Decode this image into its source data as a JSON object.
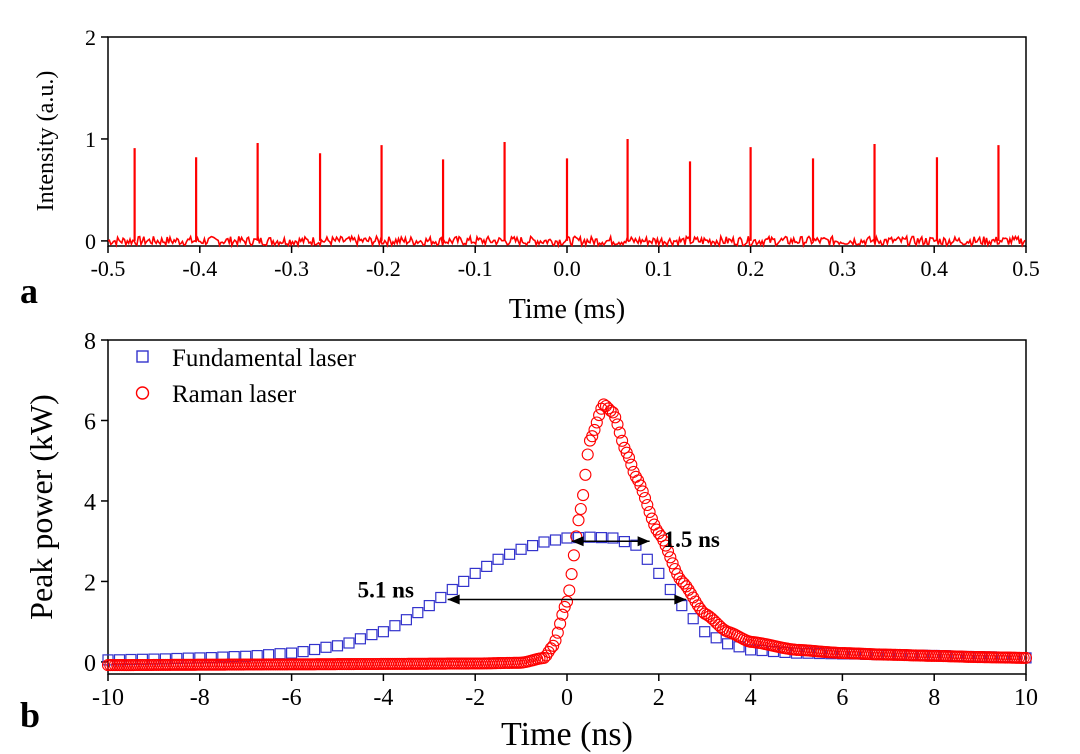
{
  "chart_data": [
    {
      "panel_label": "a",
      "type": "line",
      "xlabel": "Time (ms)",
      "ylabel": "Intensity (a.u.)",
      "xlim": [
        -0.5,
        0.5
      ],
      "ylim": [
        -0.05,
        2
      ],
      "xticks": [
        -0.5,
        -0.4,
        -0.3,
        -0.2,
        -0.1,
        0.0,
        0.1,
        0.2,
        0.3,
        0.4,
        0.5
      ],
      "xtick_labels": [
        "-0.5",
        "-0.4",
        "-0.3",
        "-0.2",
        "-0.1",
        "0.0",
        "0.1",
        "0.2",
        "0.3",
        "0.4",
        "0.5"
      ],
      "yticks": [
        0,
        1,
        2
      ],
      "ytick_labels": [
        "0",
        "1",
        "2"
      ],
      "grid": false,
      "color": "#ff0000",
      "baseline": 0.0,
      "pulses": {
        "x": [
          -0.471,
          -0.404,
          -0.337,
          -0.269,
          -0.202,
          -0.135,
          -0.068,
          0.0,
          0.066,
          0.134,
          0.2,
          0.268,
          0.335,
          0.403,
          0.47
        ],
        "y": [
          0.91,
          0.82,
          0.96,
          0.86,
          0.94,
          0.8,
          0.97,
          0.81,
          1.0,
          0.78,
          0.92,
          0.81,
          0.95,
          0.82,
          0.94
        ]
      }
    },
    {
      "panel_label": "b",
      "type": "scatter",
      "xlabel": "Time (ns)",
      "ylabel": "Peak power (kW)",
      "xlim": [
        -10,
        10
      ],
      "ylim": [
        -0.3,
        8
      ],
      "xticks": [
        -10,
        -8,
        -6,
        -4,
        -2,
        0,
        2,
        4,
        6,
        8,
        10
      ],
      "xtick_labels": [
        "-10",
        "-8",
        "-6",
        "-4",
        "-2",
        "0",
        "2",
        "4",
        "6",
        "8",
        "10"
      ],
      "yticks": [
        0,
        2,
        4,
        6,
        8
      ],
      "ytick_labels": [
        "0",
        "2",
        "4",
        "6",
        "8"
      ],
      "grid": false,
      "legend_position": "top-left",
      "series": [
        {
          "name": "Fundamental laser",
          "marker": "square",
          "color": "#3333cc",
          "x": [
            -10,
            -9,
            -8,
            -7,
            -6,
            -5,
            -4,
            -3.5,
            -3,
            -2.5,
            -2,
            -1.5,
            -1,
            -0.5,
            0,
            0.5,
            1,
            1.5,
            2,
            2.5,
            3,
            3.5,
            4,
            5,
            6,
            7,
            8,
            9,
            10
          ],
          "y": [
            0.05,
            0.07,
            0.1,
            0.14,
            0.22,
            0.4,
            0.75,
            1.05,
            1.4,
            1.8,
            2.2,
            2.55,
            2.8,
            2.98,
            3.08,
            3.1,
            3.08,
            2.9,
            2.2,
            1.4,
            0.75,
            0.45,
            0.3,
            0.22,
            0.2,
            0.18,
            0.16,
            0.13,
            0.1
          ]
        },
        {
          "name": "Raman laser",
          "marker": "circle",
          "color": "#ff0000",
          "x": [
            -10,
            -8,
            -6,
            -4,
            -2,
            -1,
            -0.5,
            -0.3,
            0,
            0.3,
            0.5,
            0.8,
            1,
            1.3,
            1.5,
            2,
            2.5,
            3,
            3.5,
            4,
            5,
            6,
            7,
            8,
            9,
            10
          ],
          "y": [
            -0.08,
            -0.07,
            -0.06,
            -0.05,
            -0.04,
            -0.02,
            0.1,
            0.4,
            1.5,
            3.8,
            5.5,
            6.4,
            6.2,
            5.2,
            4.6,
            3.2,
            2.0,
            1.2,
            0.75,
            0.5,
            0.3,
            0.22,
            0.18,
            0.15,
            0.12,
            0.1
          ]
        }
      ],
      "annotations": [
        {
          "text": "5.1 ns",
          "x_start": -2.6,
          "x_end": 2.6,
          "y": 1.55
        },
        {
          "text": "1.5 ns",
          "x_start": 0.1,
          "x_end": 1.8,
          "y": 3.0
        }
      ]
    }
  ]
}
